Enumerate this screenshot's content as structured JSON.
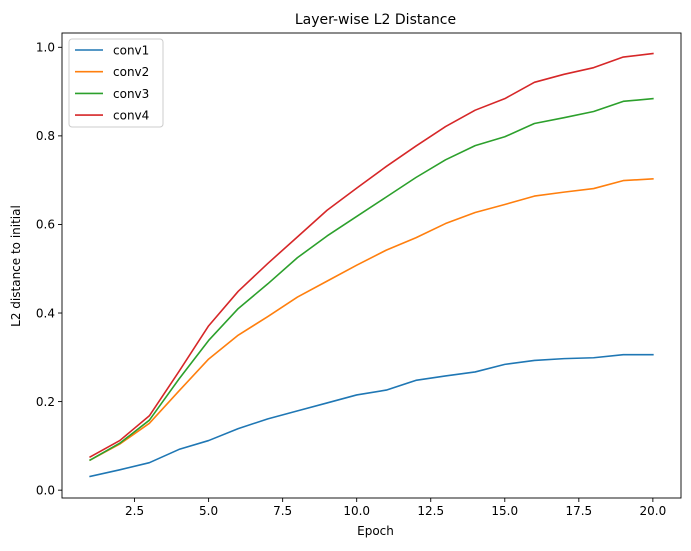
{
  "chart_data": {
    "type": "line",
    "title": "Layer-wise L2 Distance",
    "xlabel": "Epoch",
    "ylabel": "L2 distance to initial",
    "xlim": [
      0.05,
      20.95
    ],
    "ylim": [
      -0.0177,
      1.0323
    ],
    "xticks": [
      2.5,
      5.0,
      7.5,
      10.0,
      12.5,
      15.0,
      17.5,
      20.0
    ],
    "xtick_labels": [
      "2.5",
      "5.0",
      "7.5",
      "10.0",
      "12.5",
      "15.0",
      "17.5",
      "20.0"
    ],
    "yticks": [
      0.0,
      0.2,
      0.4,
      0.6,
      0.8,
      1.0
    ],
    "ytick_labels": [
      "0.0",
      "0.2",
      "0.4",
      "0.6",
      "0.8",
      "1.0"
    ],
    "grid": false,
    "legend_position": "top-left",
    "x": [
      1,
      2,
      3,
      4,
      5,
      6,
      7,
      8,
      9,
      10,
      11,
      12,
      13,
      14,
      15,
      16,
      17,
      18,
      19,
      20
    ],
    "series": [
      {
        "name": "conv1",
        "color": "#1f77b4",
        "values": [
          0.031,
          0.046,
          0.062,
          0.092,
          0.112,
          0.139,
          0.161,
          0.179,
          0.197,
          0.215,
          0.226,
          0.248,
          0.258,
          0.267,
          0.284,
          0.293,
          0.297,
          0.299,
          0.306,
          0.306
        ]
      },
      {
        "name": "conv2",
        "color": "#ff7f0e",
        "values": [
          0.068,
          0.104,
          0.151,
          0.224,
          0.296,
          0.35,
          0.392,
          0.436,
          0.472,
          0.508,
          0.542,
          0.57,
          0.602,
          0.627,
          0.645,
          0.664,
          0.673,
          0.681,
          0.699,
          0.703
        ]
      },
      {
        "name": "conv3",
        "color": "#2ca02c",
        "values": [
          0.068,
          0.106,
          0.158,
          0.251,
          0.338,
          0.41,
          0.466,
          0.525,
          0.574,
          0.618,
          0.662,
          0.706,
          0.746,
          0.778,
          0.798,
          0.828,
          0.841,
          0.855,
          0.878,
          0.884
        ]
      },
      {
        "name": "conv4",
        "color": "#d62728",
        "values": [
          0.075,
          0.112,
          0.168,
          0.268,
          0.371,
          0.449,
          0.512,
          0.572,
          0.632,
          0.682,
          0.731,
          0.777,
          0.821,
          0.858,
          0.884,
          0.921,
          0.939,
          0.954,
          0.978,
          0.986
        ]
      }
    ]
  }
}
